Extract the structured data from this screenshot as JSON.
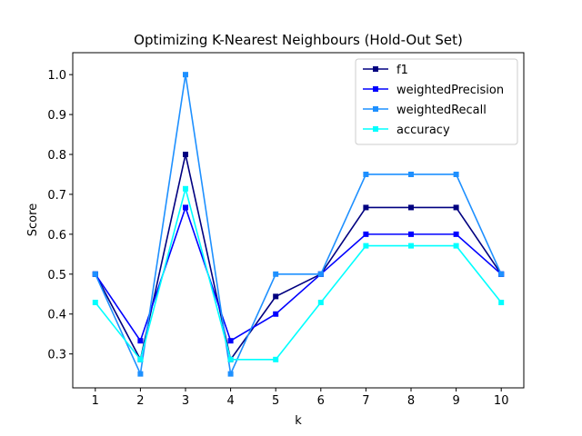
{
  "chart_data": {
    "type": "line",
    "title": "Optimizing K-Nearest Neighbours (Hold-Out Set)",
    "xlabel": "k",
    "ylabel": "Score",
    "x": [
      1,
      2,
      3,
      4,
      5,
      6,
      7,
      8,
      9,
      10
    ],
    "xlim": [
      0.5,
      10.5
    ],
    "ylim": [
      0.215,
      1.055
    ],
    "yticks": [
      0.3,
      0.4,
      0.5,
      0.6,
      0.7,
      0.8,
      0.9,
      1.0
    ],
    "ytick_labels": [
      "0.3",
      "0.4",
      "0.5",
      "0.6",
      "0.7",
      "0.8",
      "0.9",
      "1.0"
    ],
    "grid": false,
    "legend_position": "top-right",
    "marker": "square",
    "series": [
      {
        "name": "f1",
        "color": "#000080",
        "values": [
          0.5,
          0.286,
          0.8,
          0.286,
          0.444,
          0.5,
          0.667,
          0.667,
          0.667,
          0.5
        ]
      },
      {
        "name": "weightedPrecision",
        "color": "#0000ff",
        "values": [
          0.5,
          0.333,
          0.667,
          0.333,
          0.4,
          0.5,
          0.6,
          0.6,
          0.6,
          0.5
        ]
      },
      {
        "name": "weightedRecall",
        "color": "#1e90ff",
        "values": [
          0.5,
          0.25,
          1.0,
          0.25,
          0.5,
          0.5,
          0.75,
          0.75,
          0.75,
          0.5
        ]
      },
      {
        "name": "accuracy",
        "color": "#00ffff",
        "values": [
          0.429,
          0.286,
          0.714,
          0.286,
          0.286,
          0.429,
          0.571,
          0.571,
          0.571,
          0.429
        ]
      }
    ]
  }
}
